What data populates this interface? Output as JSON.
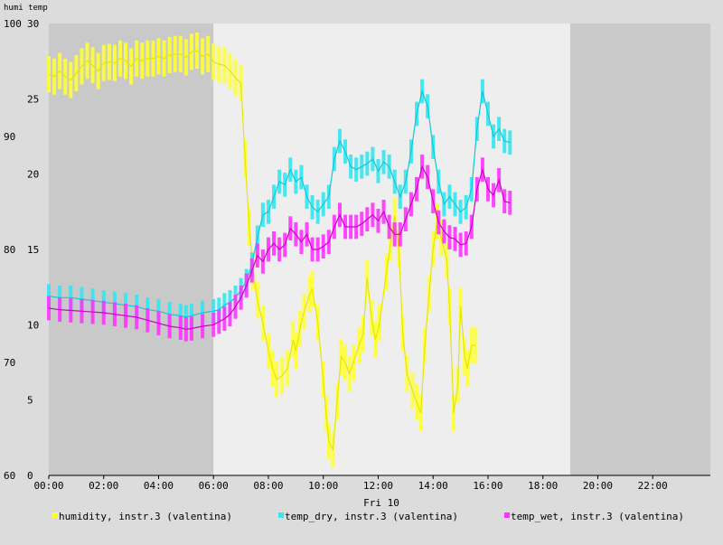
{
  "chart_data": {
    "type": "line",
    "top_left_label": "humi temp",
    "date_label": "Fri 10",
    "x_ticks": [
      "00:00",
      "02:00",
      "04:00",
      "06:00",
      "08:00",
      "10:00",
      "12:00",
      "14:00",
      "16:00",
      "18:00",
      "20:00",
      "22:00"
    ],
    "y_ticks_left": [
      "60",
      "70",
      "80",
      "90",
      "100"
    ],
    "y_ticks_right": [
      "0",
      "5",
      "10",
      "15",
      "20",
      "25",
      "30"
    ],
    "left_range": [
      60,
      100
    ],
    "right_range": [
      0,
      30
    ],
    "x_range_hours": [
      0,
      24.1
    ],
    "day_shading": {
      "day_start": 6.0,
      "day_end": 19.0,
      "day_color": "#eeeeee",
      "night_color": "#c9c9c9"
    },
    "series": [
      {
        "name": "humidity, instr.3 (valentina)",
        "color": "#ffff33",
        "axis": "left",
        "points": [
          [
            0,
            95.5
          ],
          [
            0.2,
            95.3
          ],
          [
            0.4,
            95.8
          ],
          [
            0.6,
            95.3
          ],
          [
            0.8,
            95.0
          ],
          [
            1.0,
            95.6
          ],
          [
            1.2,
            96.2
          ],
          [
            1.4,
            96.7
          ],
          [
            1.6,
            96.3
          ],
          [
            1.8,
            95.8
          ],
          [
            2.0,
            96.5
          ],
          [
            2.2,
            96.6
          ],
          [
            2.4,
            96.5
          ],
          [
            2.6,
            96.9
          ],
          [
            2.8,
            96.7
          ],
          [
            3.0,
            96.2
          ],
          [
            3.2,
            96.9
          ],
          [
            3.4,
            96.7
          ],
          [
            3.6,
            96.9
          ],
          [
            3.8,
            96.9
          ],
          [
            4.0,
            97.1
          ],
          [
            4.2,
            96.9
          ],
          [
            4.4,
            97.2
          ],
          [
            4.6,
            97.3
          ],
          [
            4.8,
            97.3
          ],
          [
            5.0,
            97.0
          ],
          [
            5.2,
            97.5
          ],
          [
            5.4,
            97.6
          ],
          [
            5.6,
            97.1
          ],
          [
            5.8,
            97.3
          ],
          [
            6.0,
            96.6
          ],
          [
            6.2,
            96.4
          ],
          [
            6.4,
            96.3
          ],
          [
            6.6,
            95.8
          ],
          [
            6.8,
            95.2
          ],
          [
            7.0,
            94.7
          ],
          [
            7.15,
            88.0
          ],
          [
            7.3,
            82.0
          ],
          [
            7.45,
            78.0
          ],
          [
            7.6,
            75.5
          ],
          [
            7.8,
            73.5
          ],
          [
            8.0,
            71.0
          ],
          [
            8.15,
            69.5
          ],
          [
            8.3,
            68.5
          ],
          [
            8.5,
            68.8
          ],
          [
            8.7,
            69.5
          ],
          [
            8.9,
            72.0
          ],
          [
            9.0,
            71.0
          ],
          [
            9.15,
            73.0
          ],
          [
            9.3,
            74.5
          ],
          [
            9.5,
            76.0
          ],
          [
            9.6,
            76.5
          ],
          [
            9.8,
            73.5
          ],
          [
            10.0,
            68.5
          ],
          [
            10.1,
            65.5
          ],
          [
            10.2,
            63.0
          ],
          [
            10.35,
            62.3
          ],
          [
            10.5,
            66.5
          ],
          [
            10.65,
            70.5
          ],
          [
            10.8,
            70.0
          ],
          [
            10.95,
            69.0
          ],
          [
            11.1,
            70.0
          ],
          [
            11.3,
            71.5
          ],
          [
            11.45,
            72.5
          ],
          [
            11.6,
            77.5
          ],
          [
            11.75,
            74.0
          ],
          [
            11.9,
            72.0
          ],
          [
            12.05,
            73.5
          ],
          [
            12.3,
            78.0
          ],
          [
            12.45,
            80.5
          ],
          [
            12.6,
            83.0
          ],
          [
            12.75,
            80.0
          ],
          [
            12.9,
            72.5
          ],
          [
            13.05,
            69.0
          ],
          [
            13.25,
            67.5
          ],
          [
            13.4,
            66.5
          ],
          [
            13.55,
            65.5
          ],
          [
            13.7,
            71.5
          ],
          [
            13.85,
            76.0
          ],
          [
            14.0,
            80.0
          ],
          [
            14.15,
            82.5
          ],
          [
            14.3,
            81.0
          ],
          [
            14.5,
            79.0
          ],
          [
            14.6,
            75.0
          ],
          [
            14.75,
            65.5
          ],
          [
            14.9,
            68.0
          ],
          [
            15.0,
            75.0
          ],
          [
            15.15,
            70.5
          ],
          [
            15.25,
            69.5
          ],
          [
            15.4,
            71.5
          ],
          [
            15.55,
            71.5
          ]
        ]
      },
      {
        "name": "temp_dry, instr.3 (valentina)",
        "color": "#33e6f0",
        "axis": "right",
        "points": [
          [
            0,
            11.9
          ],
          [
            0.4,
            11.8
          ],
          [
            0.8,
            11.8
          ],
          [
            1.2,
            11.7
          ],
          [
            1.6,
            11.6
          ],
          [
            2.0,
            11.5
          ],
          [
            2.4,
            11.4
          ],
          [
            2.8,
            11.3
          ],
          [
            3.2,
            11.2
          ],
          [
            3.6,
            11.0
          ],
          [
            4.0,
            10.9
          ],
          [
            4.4,
            10.7
          ],
          [
            4.8,
            10.6
          ],
          [
            5.0,
            10.5
          ],
          [
            5.2,
            10.6
          ],
          [
            5.6,
            10.8
          ],
          [
            6.0,
            10.9
          ],
          [
            6.2,
            11.0
          ],
          [
            6.4,
            11.3
          ],
          [
            6.6,
            11.5
          ],
          [
            6.8,
            11.8
          ],
          [
            7.0,
            12.3
          ],
          [
            7.2,
            12.9
          ],
          [
            7.4,
            14.0
          ],
          [
            7.6,
            15.8
          ],
          [
            7.8,
            17.3
          ],
          [
            8.0,
            17.5
          ],
          [
            8.2,
            18.5
          ],
          [
            8.4,
            19.5
          ],
          [
            8.6,
            19.3
          ],
          [
            8.8,
            20.3
          ],
          [
            9.0,
            19.5
          ],
          [
            9.2,
            19.8
          ],
          [
            9.4,
            18.5
          ],
          [
            9.6,
            17.8
          ],
          [
            9.8,
            17.5
          ],
          [
            10.0,
            18.0
          ],
          [
            10.2,
            18.5
          ],
          [
            10.4,
            21.0
          ],
          [
            10.6,
            22.2
          ],
          [
            10.8,
            21.5
          ],
          [
            11.0,
            20.5
          ],
          [
            11.2,
            20.3
          ],
          [
            11.4,
            20.5
          ],
          [
            11.6,
            20.7
          ],
          [
            11.8,
            21.0
          ],
          [
            12.0,
            20.2
          ],
          [
            12.2,
            20.8
          ],
          [
            12.4,
            20.5
          ],
          [
            12.6,
            19.5
          ],
          [
            12.8,
            18.5
          ],
          [
            13.0,
            19.5
          ],
          [
            13.2,
            21.5
          ],
          [
            13.4,
            24.0
          ],
          [
            13.6,
            25.5
          ],
          [
            13.8,
            24.5
          ],
          [
            14.0,
            21.8
          ],
          [
            14.2,
            19.5
          ],
          [
            14.4,
            18.0
          ],
          [
            14.6,
            18.5
          ],
          [
            14.8,
            18.0
          ],
          [
            15.0,
            17.5
          ],
          [
            15.2,
            17.8
          ],
          [
            15.4,
            19.0
          ],
          [
            15.6,
            23.0
          ],
          [
            15.8,
            25.5
          ],
          [
            16.0,
            24.0
          ],
          [
            16.2,
            22.5
          ],
          [
            16.4,
            23.0
          ],
          [
            16.6,
            22.2
          ],
          [
            16.8,
            22.1
          ]
        ]
      },
      {
        "name": "temp_wet, instr.3 (valentina)",
        "color": "#ff33ff",
        "axis": "right",
        "points": [
          [
            0,
            11.1
          ],
          [
            0.4,
            11.0
          ],
          [
            0.8,
            10.95
          ],
          [
            1.2,
            10.9
          ],
          [
            1.6,
            10.85
          ],
          [
            2.0,
            10.8
          ],
          [
            2.4,
            10.7
          ],
          [
            2.8,
            10.6
          ],
          [
            3.2,
            10.5
          ],
          [
            3.6,
            10.3
          ],
          [
            4.0,
            10.1
          ],
          [
            4.4,
            9.9
          ],
          [
            4.8,
            9.8
          ],
          [
            5.0,
            9.7
          ],
          [
            5.2,
            9.75
          ],
          [
            5.6,
            9.9
          ],
          [
            6.0,
            10.0
          ],
          [
            6.2,
            10.2
          ],
          [
            6.4,
            10.4
          ],
          [
            6.6,
            10.7
          ],
          [
            6.8,
            11.2
          ],
          [
            7.0,
            11.8
          ],
          [
            7.2,
            12.6
          ],
          [
            7.4,
            13.6
          ],
          [
            7.6,
            14.6
          ],
          [
            7.8,
            14.2
          ],
          [
            8.0,
            15.0
          ],
          [
            8.2,
            15.4
          ],
          [
            8.4,
            15.0
          ],
          [
            8.6,
            15.3
          ],
          [
            8.8,
            16.4
          ],
          [
            9.0,
            16.0
          ],
          [
            9.2,
            15.5
          ],
          [
            9.4,
            16.0
          ],
          [
            9.6,
            15.0
          ],
          [
            9.8,
            15.0
          ],
          [
            10.0,
            15.2
          ],
          [
            10.2,
            15.5
          ],
          [
            10.4,
            16.5
          ],
          [
            10.6,
            17.3
          ],
          [
            10.8,
            16.5
          ],
          [
            11.0,
            16.5
          ],
          [
            11.2,
            16.5
          ],
          [
            11.4,
            16.7
          ],
          [
            11.6,
            17.0
          ],
          [
            11.8,
            17.3
          ],
          [
            12.0,
            16.9
          ],
          [
            12.2,
            17.5
          ],
          [
            12.4,
            16.5
          ],
          [
            12.6,
            16.0
          ],
          [
            12.8,
            16.0
          ],
          [
            13.0,
            17.0
          ],
          [
            13.2,
            18.0
          ],
          [
            13.4,
            19.0
          ],
          [
            13.6,
            20.5
          ],
          [
            13.8,
            19.8
          ],
          [
            14.0,
            18.2
          ],
          [
            14.2,
            16.8
          ],
          [
            14.4,
            16.2
          ],
          [
            14.6,
            15.8
          ],
          [
            14.8,
            15.7
          ],
          [
            15.0,
            15.3
          ],
          [
            15.2,
            15.4
          ],
          [
            15.4,
            16.5
          ],
          [
            15.6,
            19.0
          ],
          [
            15.8,
            20.3
          ],
          [
            16.0,
            19.0
          ],
          [
            16.2,
            18.6
          ],
          [
            16.4,
            19.6
          ],
          [
            16.6,
            18.2
          ],
          [
            16.8,
            18.1
          ]
        ]
      }
    ],
    "legend": [
      {
        "label": "humidity, instr.3 (valentina)",
        "color": "#ffff33"
      },
      {
        "label": "temp_dry, instr.3 (valentina)",
        "color": "#33e6f0"
      },
      {
        "label": "temp_wet, instr.3 (valentina)",
        "color": "#ff33ff"
      }
    ]
  }
}
